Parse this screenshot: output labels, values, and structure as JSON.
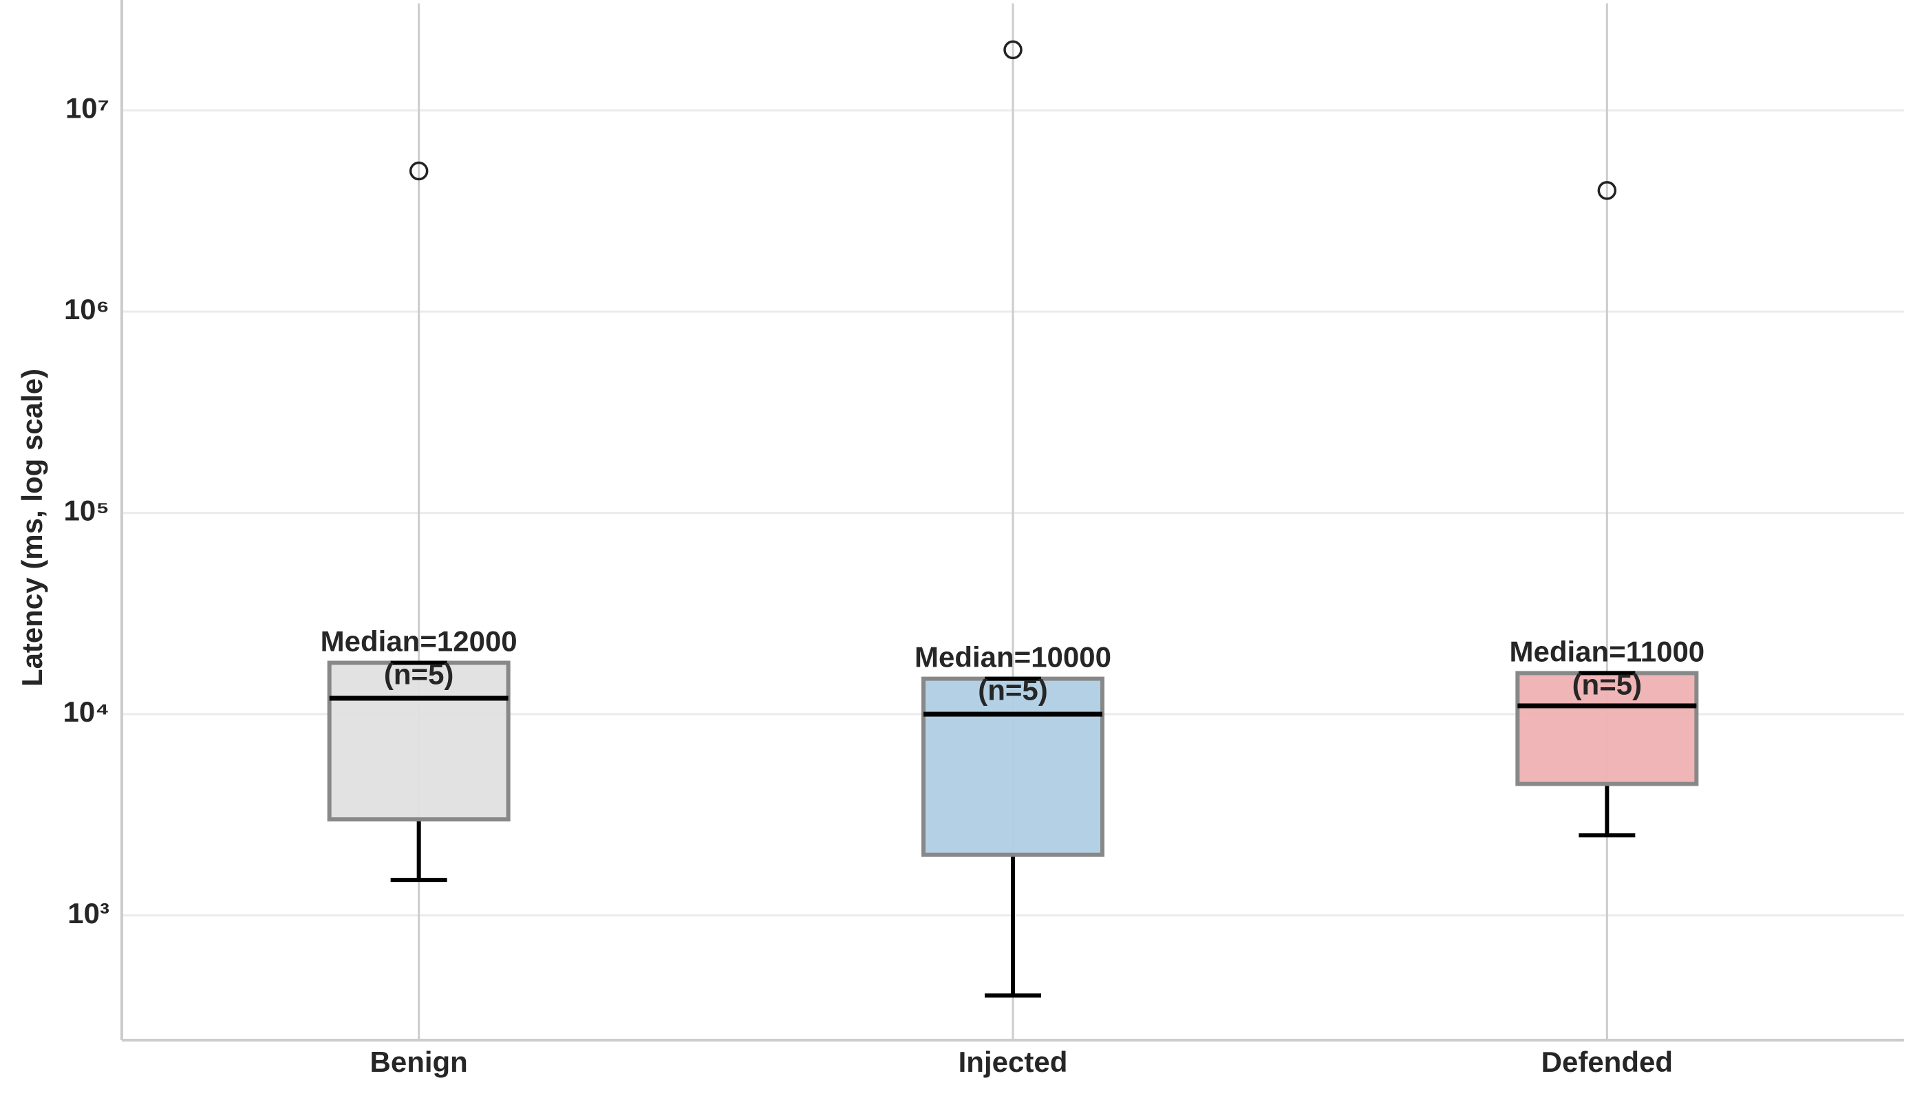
{
  "chart_data": {
    "type": "box",
    "y_label": "Latency (ms, log scale)",
    "categories": [
      "Benign",
      "Injected",
      "Defended"
    ],
    "boxes": [
      {
        "whislo": 1500,
        "q1": 3000,
        "med": 12000,
        "q3": 18000,
        "whishi": 18000,
        "fliers": [
          5000000
        ],
        "color": "#e0e0e0",
        "median_label": "Median=12000",
        "n_label": "(n=5)"
      },
      {
        "whislo": 400,
        "q1": 2000,
        "med": 10000,
        "q3": 15000,
        "whishi": 15000,
        "fliers": [
          20000000
        ],
        "color": "#b0cde3",
        "median_label": "Median=10000",
        "n_label": "(n=5)"
      },
      {
        "whislo": 2500,
        "q1": 4500,
        "med": 11000,
        "q3": 16000,
        "whishi": 16000,
        "fliers": [
          4000000
        ],
        "color": "#efb1b3",
        "median_label": "Median=11000",
        "n_label": "(n=5)"
      }
    ],
    "log_y": true,
    "ylim": [
      240,
      34000000
    ],
    "yticks": [
      {
        "value": 1000,
        "label": "10³"
      },
      {
        "value": 10000,
        "label": "10⁴"
      },
      {
        "value": 100000,
        "label": "10⁵"
      },
      {
        "value": 1000000,
        "label": "10⁶"
      },
      {
        "value": 10000000,
        "label": "10⁷"
      }
    ],
    "grid": true
  }
}
